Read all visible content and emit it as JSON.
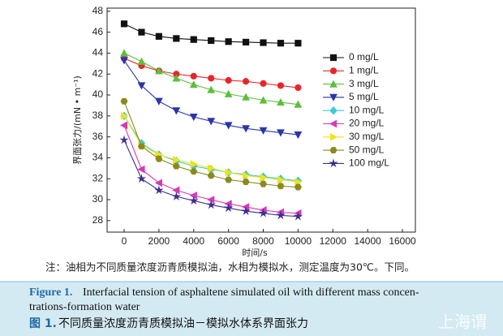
{
  "chart_data": {
    "type": "line",
    "y_label": "界面张力/(mN • m⁻¹)",
    "x_label": "时间/s",
    "x": [
      0,
      1000,
      2000,
      3000,
      4000,
      5000,
      6000,
      7000,
      8000,
      9000,
      10000
    ],
    "series": [
      {
        "name": "0 mg/L",
        "color": "#111111",
        "marker": "square",
        "values": [
          46.8,
          46.0,
          45.6,
          45.4,
          45.3,
          45.2,
          45.1,
          45.05,
          45.0,
          44.95,
          44.95
        ]
      },
      {
        "name": "1 mg/L",
        "color": "#e8262a",
        "marker": "circle",
        "values": [
          43.5,
          42.8,
          42.3,
          42.0,
          41.8,
          41.6,
          41.4,
          41.3,
          41.1,
          40.9,
          40.7
        ]
      },
      {
        "name": "3 mg/L",
        "color": "#5cbf3a",
        "marker": "triangle-up",
        "values": [
          44.0,
          43.2,
          42.3,
          41.6,
          41.0,
          40.5,
          40.1,
          39.8,
          39.5,
          39.3,
          39.1
        ]
      },
      {
        "name": "5 mg/L",
        "color": "#2b35a8",
        "marker": "triangle-down",
        "values": [
          43.3,
          40.9,
          39.4,
          38.5,
          37.9,
          37.5,
          37.1,
          36.8,
          36.6,
          36.4,
          36.2
        ]
      },
      {
        "name": "10 mg/L",
        "color": "#3fc9d6",
        "marker": "diamond",
        "values": [
          38.0,
          35.4,
          34.3,
          33.7,
          33.2,
          32.9,
          32.6,
          32.4,
          32.2,
          32.0,
          31.8
        ]
      },
      {
        "name": "20 mg/L",
        "color": "#d63ab8",
        "marker": "triangle-left",
        "values": [
          37.1,
          32.9,
          31.6,
          30.9,
          30.4,
          30.0,
          29.6,
          29.3,
          29.0,
          28.8,
          28.7
        ]
      },
      {
        "name": "30 mg/L",
        "color": "#f2e21b",
        "marker": "triangle-right",
        "values": [
          38.0,
          35.2,
          34.3,
          33.8,
          33.4,
          33.0,
          32.6,
          32.3,
          32.1,
          31.9,
          31.7
        ]
      },
      {
        "name": "50 mg/L",
        "color": "#8c8a1e",
        "marker": "hexagon",
        "values": [
          39.4,
          35.1,
          33.9,
          33.2,
          32.7,
          32.3,
          31.9,
          31.7,
          31.5,
          31.3,
          31.2
        ]
      },
      {
        "name": "100 mg/L",
        "color": "#3b2f8f",
        "marker": "star",
        "values": [
          35.7,
          32.0,
          30.9,
          30.3,
          29.9,
          29.5,
          29.2,
          28.9,
          28.7,
          28.5,
          28.4
        ]
      }
    ],
    "xlim": [
      -980,
      16745
    ],
    "ylim": [
      26.9,
      48.3
    ],
    "xticks": [
      0,
      2000,
      4000,
      6000,
      8000,
      10000,
      12000,
      14000,
      16000
    ],
    "yticks": [
      28,
      30,
      32,
      34,
      36,
      38,
      40,
      42,
      44,
      46,
      48
    ],
    "legend": "right"
  },
  "note": "注：油相为不同质量浓度沥青质模拟油，水相为模拟水，测定温度为30℃。下同。",
  "caption_en": {
    "label": "Figure 1.",
    "lines": [
      "Interfacial tension of asphaltene simulated oil with different mass concen-",
      "trations-formation water"
    ]
  },
  "caption_zh": {
    "label": "图 1.",
    "text": "不同质量浓度沥青质模拟油－模拟水体系界面张力"
  },
  "watermark": "上海谓"
}
